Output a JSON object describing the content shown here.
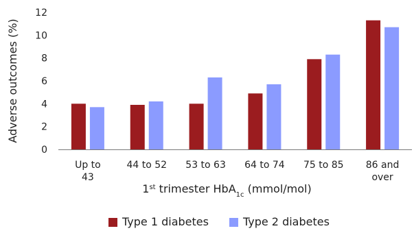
{
  "chart_data": {
    "type": "bar",
    "title": "",
    "ylabel": "Adverse outcomes (%)",
    "xlabel": {
      "pre": "1",
      "sup": "st",
      "mid": " trimester HbA",
      "sub": "1c",
      "post": " (mmol/mol)"
    },
    "ylim": [
      0,
      12
    ],
    "yticks": [
      0,
      2,
      4,
      6,
      8,
      10,
      12
    ],
    "grid": false,
    "legend_position": "bottom",
    "categories": [
      [
        "Up to",
        "43"
      ],
      [
        "44 to 52"
      ],
      [
        "53 to 63"
      ],
      [
        "64 to 74"
      ],
      [
        "75 to 85"
      ],
      [
        "86 and",
        "over"
      ]
    ],
    "series": [
      {
        "name": "Type 1 diabetes",
        "color": "#9b1c1f",
        "values": [
          4.0,
          3.9,
          4.0,
          4.9,
          7.9,
          11.3
        ]
      },
      {
        "name": "Type 2 diabetes",
        "color": "#8b9bff",
        "values": [
          3.7,
          4.2,
          6.3,
          5.7,
          8.3,
          10.7
        ]
      }
    ]
  }
}
